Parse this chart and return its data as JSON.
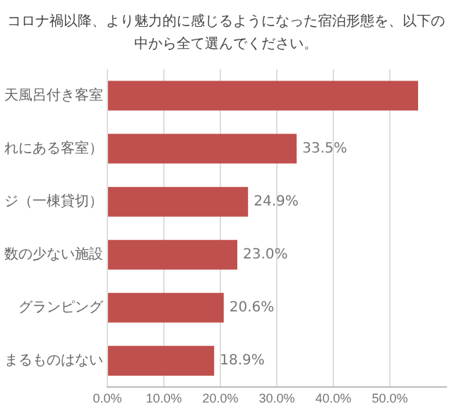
{
  "chart_data": {
    "type": "bar",
    "orientation": "horizontal",
    "title": "コロナ禍以降、より魅力的に感じるようになった宿泊形態を、以下の中から全て選んでください。",
    "categories": [
      "天風呂付き客室",
      "れにある客室）",
      "ジ（一棟貸切）",
      "数の少ない施設",
      "グランピング",
      "まるものはない"
    ],
    "values": [
      55,
      33.5,
      24.9,
      23.0,
      20.6,
      18.9
    ],
    "value_labels": [
      null,
      "33.5%",
      "24.9%",
      "23.0%",
      "20.6%",
      "18.9%"
    ],
    "color": "#c0504d",
    "xlim": [
      0,
      60
    ],
    "xticks": [
      {
        "value": 0,
        "label": "0.0%"
      },
      {
        "value": 10,
        "label": "10.0%"
      },
      {
        "value": 20,
        "label": "20.0%"
      },
      {
        "value": 30,
        "label": "30.0%"
      },
      {
        "value": 40,
        "label": "40.0%"
      },
      {
        "value": 50,
        "label": "50.0%"
      }
    ],
    "grid": "x"
  }
}
